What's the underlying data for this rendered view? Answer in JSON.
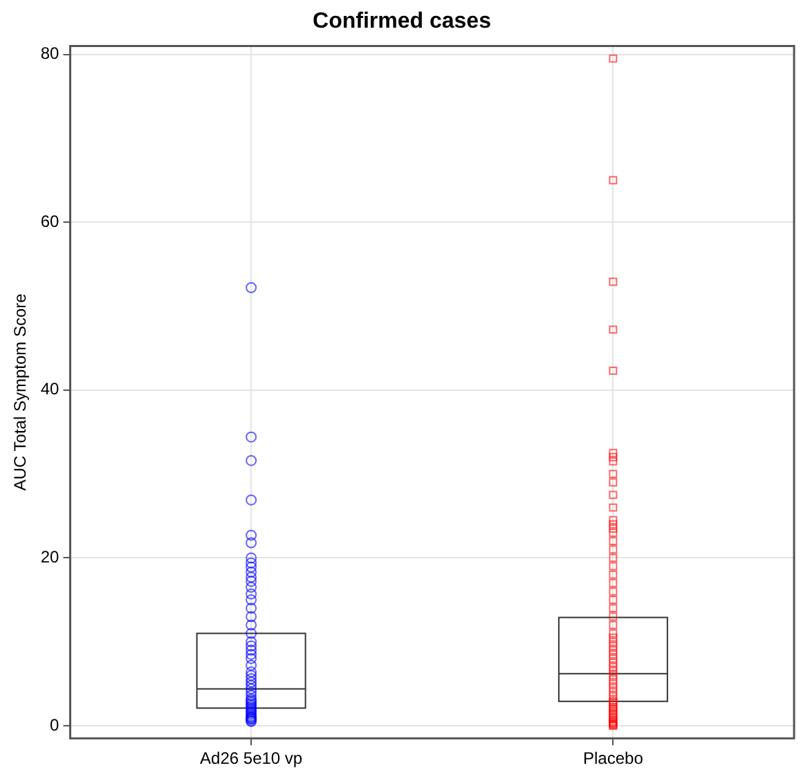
{
  "chart_data": {
    "type": "box",
    "title": "Confirmed cases",
    "ylabel": "AUC Total Symptom Score",
    "categories": [
      "Ad26 5e10 vp",
      "Placebo"
    ],
    "boxes": [
      {
        "low": 2.1,
        "q1": 2.1,
        "median": 4.4,
        "q3": 11.0,
        "high": 11.0
      },
      {
        "low": 2.9,
        "q1": 2.9,
        "median": 6.2,
        "q3": 12.9,
        "high": 12.9
      }
    ],
    "series": [
      {
        "type": "scatter",
        "marker": "circle",
        "color": "#0000ff",
        "x": [
          "Ad26 5e10 vp",
          "Ad26 5e10 vp",
          "Ad26 5e10 vp",
          "Ad26 5e10 vp",
          "Ad26 5e10 vp",
          "Ad26 5e10 vp",
          "Ad26 5e10 vp",
          "Ad26 5e10 vp",
          "Ad26 5e10 vp",
          "Ad26 5e10 vp",
          "Ad26 5e10 vp",
          "Ad26 5e10 vp",
          "Ad26 5e10 vp",
          "Ad26 5e10 vp",
          "Ad26 5e10 vp",
          "Ad26 5e10 vp",
          "Ad26 5e10 vp",
          "Ad26 5e10 vp",
          "Ad26 5e10 vp",
          "Ad26 5e10 vp",
          "Ad26 5e10 vp",
          "Ad26 5e10 vp",
          "Ad26 5e10 vp",
          "Ad26 5e10 vp",
          "Ad26 5e10 vp",
          "Ad26 5e10 vp",
          "Ad26 5e10 vp",
          "Ad26 5e10 vp",
          "Ad26 5e10 vp",
          "Ad26 5e10 vp",
          "Ad26 5e10 vp",
          "Ad26 5e10 vp",
          "Ad26 5e10 vp",
          "Ad26 5e10 vp",
          "Ad26 5e10 vp",
          "Ad26 5e10 vp",
          "Ad26 5e10 vp",
          "Ad26 5e10 vp",
          "Ad26 5e10 vp",
          "Ad26 5e10 vp",
          "Ad26 5e10 vp",
          "Ad26 5e10 vp",
          "Ad26 5e10 vp",
          "Ad26 5e10 vp",
          "Ad26 5e10 vp",
          "Ad26 5e10 vp",
          "Ad26 5e10 vp",
          "Ad26 5e10 vp",
          "Ad26 5e10 vp",
          "Ad26 5e10 vp"
        ],
        "values": [
          52.2,
          34.4,
          31.6,
          26.9,
          22.7,
          21.8,
          20.0,
          19.4,
          18.9,
          18.3,
          17.7,
          17.2,
          16.5,
          15.7,
          15.0,
          14.0,
          13.0,
          12.0,
          11.0,
          10.0,
          9.5,
          9.0,
          8.5,
          8.0,
          7.2,
          6.4,
          6.0,
          5.6,
          5.2,
          4.8,
          4.4,
          4.0,
          3.6,
          3.2,
          3.0,
          2.8,
          2.6,
          2.4,
          2.2,
          2.0,
          1.8,
          1.6,
          1.4,
          1.2,
          1.0,
          1.0,
          0.8,
          0.8,
          0.6,
          0.5
        ]
      },
      {
        "type": "scatter",
        "marker": "square",
        "color": "#ff0000",
        "x": [
          "Placebo",
          "Placebo",
          "Placebo",
          "Placebo",
          "Placebo",
          "Placebo",
          "Placebo",
          "Placebo",
          "Placebo",
          "Placebo",
          "Placebo",
          "Placebo",
          "Placebo",
          "Placebo",
          "Placebo",
          "Placebo",
          "Placebo",
          "Placebo",
          "Placebo",
          "Placebo",
          "Placebo",
          "Placebo",
          "Placebo",
          "Placebo",
          "Placebo",
          "Placebo",
          "Placebo",
          "Placebo",
          "Placebo",
          "Placebo",
          "Placebo",
          "Placebo",
          "Placebo",
          "Placebo",
          "Placebo",
          "Placebo",
          "Placebo",
          "Placebo",
          "Placebo",
          "Placebo",
          "Placebo",
          "Placebo",
          "Placebo",
          "Placebo",
          "Placebo",
          "Placebo",
          "Placebo",
          "Placebo",
          "Placebo",
          "Placebo",
          "Placebo",
          "Placebo",
          "Placebo",
          "Placebo",
          "Placebo",
          "Placebo",
          "Placebo",
          "Placebo",
          "Placebo"
        ],
        "values": [
          79.5,
          65.0,
          52.9,
          47.2,
          42.3,
          32.5,
          32.0,
          31.5,
          30.0,
          29.0,
          27.5,
          26.0,
          24.5,
          24.0,
          23.5,
          23.0,
          22.0,
          21.0,
          20.0,
          19.0,
          18.0,
          17.0,
          16.0,
          15.0,
          14.0,
          13.0,
          12.0,
          11.0,
          10.5,
          10.0,
          9.5,
          9.0,
          8.5,
          8.0,
          7.5,
          7.0,
          6.5,
          6.0,
          5.5,
          5.0,
          4.5,
          4.0,
          3.5,
          3.0,
          2.8,
          2.5,
          2.2,
          2.0,
          1.8,
          1.5,
          1.3,
          1.0,
          0.8,
          0.6,
          0.4,
          0.3,
          0.2,
          0.1,
          0.0
        ]
      }
    ],
    "ylim": [
      -1.5,
      81
    ],
    "yticks": [
      0,
      20,
      40,
      60,
      80
    ],
    "grid": true
  }
}
